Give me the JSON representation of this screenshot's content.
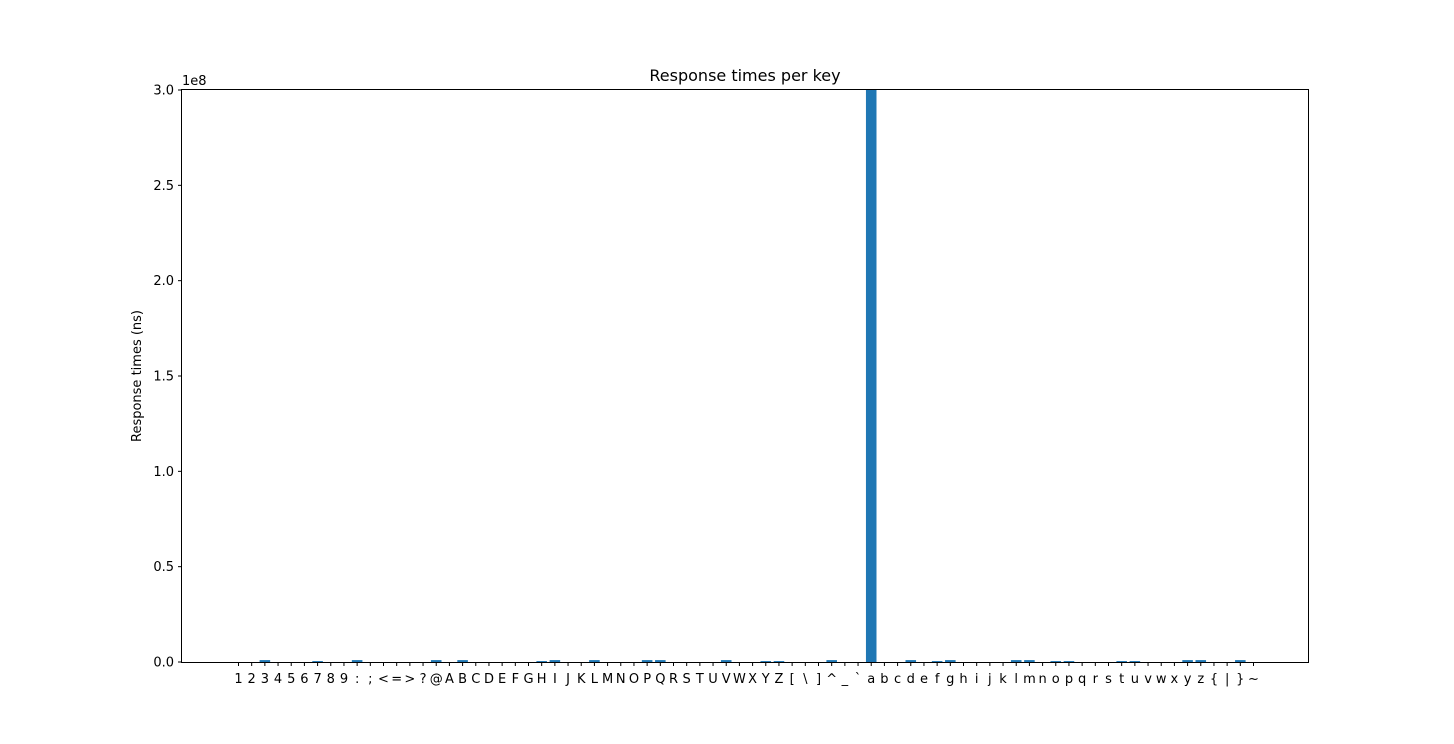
{
  "chart_data": {
    "type": "bar",
    "title": "Response times per key",
    "xlabel": "",
    "ylabel": "Response times (ns)",
    "y_offset_label": "1e8",
    "ylim": [
      0,
      300000000
    ],
    "yticks": [
      0,
      50000000,
      100000000,
      150000000,
      200000000,
      250000000,
      300000000
    ],
    "ytick_labels": [
      "0.0",
      "0.5",
      "1.0",
      "1.5",
      "2.0",
      "2.5",
      "3.0"
    ],
    "grid": false,
    "color": "#1f77b4",
    "categories": [
      "1",
      "2",
      "3",
      "4",
      "5",
      "6",
      "7",
      "8",
      "9",
      ":",
      ";",
      "<",
      "=",
      ">",
      "?",
      "@",
      "A",
      "B",
      "C",
      "D",
      "E",
      "F",
      "G",
      "H",
      "I",
      "J",
      "K",
      "L",
      "M",
      "N",
      "O",
      "P",
      "Q",
      "R",
      "S",
      "T",
      "U",
      "V",
      "W",
      "X",
      "Y",
      "Z",
      "[",
      "\\",
      "]",
      "^",
      "_",
      "`",
      "a",
      "b",
      "c",
      "d",
      "e",
      "f",
      "g",
      "h",
      "i",
      "j",
      "k",
      "l",
      "m",
      "n",
      "o",
      "p",
      "q",
      "r",
      "s",
      "t",
      "u",
      "v",
      "w",
      "x",
      "y",
      "z",
      "{",
      "|",
      "}",
      "~"
    ],
    "values": [
      0,
      0,
      1000000,
      0,
      0,
      0,
      500000,
      0,
      0,
      1000000,
      0,
      0,
      0,
      0,
      0,
      1000000,
      0,
      1000000,
      0,
      0,
      0,
      0,
      0,
      500000,
      1000000,
      0,
      0,
      1000000,
      0,
      0,
      0,
      1000000,
      1000000,
      0,
      0,
      0,
      0,
      1000000,
      0,
      0,
      500000,
      500000,
      0,
      0,
      0,
      1000000,
      0,
      0,
      300000000,
      0,
      0,
      1000000,
      0,
      500000,
      1000000,
      0,
      0,
      0,
      0,
      1000000,
      1000000,
      0,
      500000,
      500000,
      0,
      0,
      0,
      500000,
      500000,
      0,
      0,
      0,
      1000000,
      1000000,
      0,
      0,
      1000000,
      0
    ]
  }
}
